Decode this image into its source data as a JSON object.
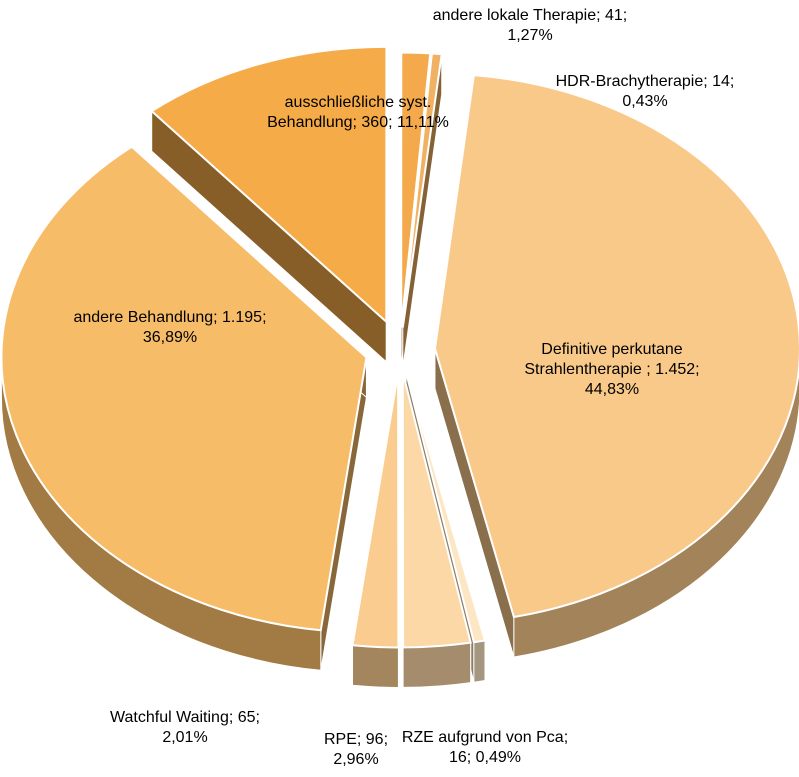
{
  "chart_data": {
    "type": "pie",
    "categories": [
      "ausschließliche syst. Behandlung",
      "andere lokale Therapie",
      "HDR-Brachytherapie",
      "Definitive perkutane Strahlentherapie  ",
      "RZE aufgrund von Pca",
      "RPE",
      "Watchful Waiting",
      "andere Behandlung"
    ],
    "values": [
      360,
      41,
      14,
      1452,
      16,
      96,
      65,
      1195
    ],
    "value_labels": [
      "360",
      "41",
      "14",
      "1.452",
      "16",
      "96",
      "65",
      "1.195"
    ],
    "percentages": [
      11.11,
      1.27,
      0.43,
      44.83,
      0.49,
      2.96,
      2.01,
      36.89
    ],
    "percentage_labels": [
      "11,11%",
      "1,27%",
      "0,43%",
      "44,83%",
      "0,49%",
      "2,96%",
      "2,01%",
      "36,89%"
    ],
    "label_separator": "; ",
    "colors": [
      "#f5ab48",
      "#f4aa4c",
      "#f0b262",
      "#f9c98a",
      "#fde6c4",
      "#fcd8a6",
      "#fbcc90",
      "#f7bc68"
    ]
  }
}
